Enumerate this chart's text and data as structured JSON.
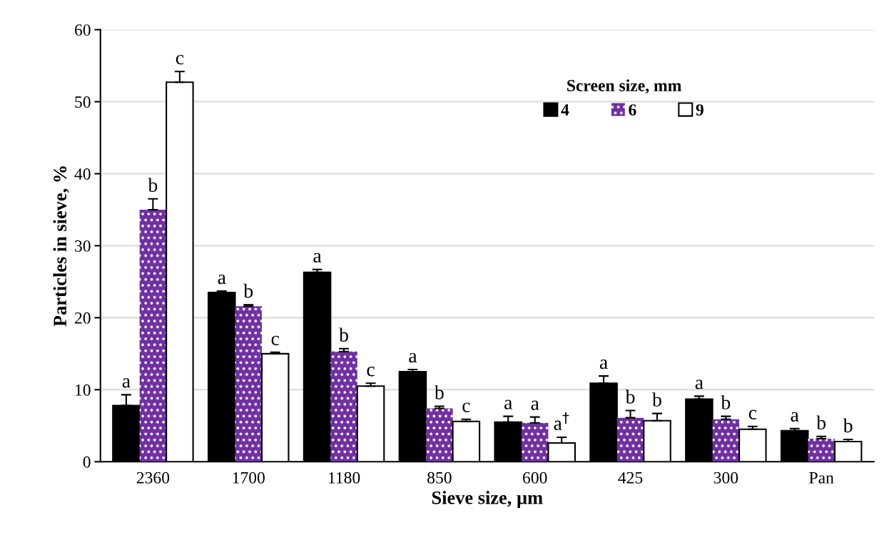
{
  "chart_data": {
    "type": "bar",
    "xlabel": "Sieve size, µm",
    "ylabel": "Particles in sieve, %",
    "legend_title": "Screen size, mm",
    "categories": [
      "2360",
      "1700",
      "1180",
      "850",
      "600",
      "425",
      "300",
      "Pan"
    ],
    "series": [
      {
        "name": "4",
        "color": "#000000",
        "values": [
          7.8,
          23.5,
          26.3,
          12.5,
          5.5,
          10.9,
          8.7,
          4.3
        ],
        "errors": [
          1.5,
          0.2,
          0.4,
          0.3,
          0.8,
          1.0,
          0.4,
          0.3
        ],
        "value_labels": [
          "a",
          "a",
          "a",
          "a",
          "a",
          "a",
          "a",
          "a"
        ]
      },
      {
        "name": "6",
        "color": "#7030a0",
        "values": [
          35.0,
          21.6,
          15.3,
          7.4,
          5.4,
          6.1,
          5.9,
          3.2
        ],
        "errors": [
          1.5,
          0.2,
          0.4,
          0.3,
          0.8,
          1.0,
          0.4,
          0.3
        ],
        "value_labels": [
          "b",
          "b",
          "b",
          "b",
          "a",
          "b",
          "b",
          "b"
        ]
      },
      {
        "name": "9",
        "color": "#ffffff",
        "values": [
          52.7,
          15.0,
          10.5,
          5.6,
          2.6,
          5.7,
          4.5,
          2.8
        ],
        "errors": [
          1.5,
          0.2,
          0.4,
          0.3,
          0.8,
          1.0,
          0.4,
          0.3
        ],
        "value_labels": [
          "c",
          "c",
          "c",
          "c",
          "a$^{†}$",
          "b",
          "c",
          "b"
        ]
      }
    ],
    "ylim": [
      0,
      60
    ],
    "yticks": [
      0,
      10,
      20,
      30,
      40,
      50,
      60
    ],
    "grid": "y",
    "legend": "top right"
  }
}
